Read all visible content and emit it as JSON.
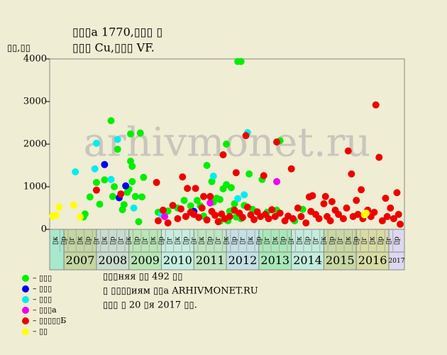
{
  "chart_data": {
    "type": "scatter",
    "title": "▯▯▯а 1770,▯▯▯ ▯",
    "subtitle": "▯▯▯ Cu,▯▯▯ VF.",
    "y_label": "▯▯,▯▯",
    "watermark": "arhivmonet.ru",
    "annotations": [
      "▯▯▯няя ▯▯ 492 ▯▯",
      "▯ ▯▯▯▯иям ▯▯а ARHIVMONET.RU",
      "▯▯▯ ▯ 20 ▯я 2017 ▯▯."
    ],
    "xlim": [
      2006.56,
      2017.48
    ],
    "ylim": [
      0,
      4000
    ],
    "yticks": [
      0,
      1000,
      2000,
      3000,
      4000
    ],
    "xticks": [
      2007,
      2008,
      2009,
      2010,
      2011,
      2012,
      2013,
      2014,
      2015,
      2016,
      2017
    ],
    "year_colors": [
      "#c4d6a2",
      "#c9dccf",
      "#b9e6b5",
      "#c6eee0",
      "#bfe6c0",
      "#c4e0e4",
      "#a8e8b8",
      "#c2ecdc",
      "#c8d8a4",
      "#d8dca4",
      "#ddd8ee"
    ],
    "first_cell_color": "#a8e8cc",
    "quarter_labels": [
      "▯к",
      "▯р",
      "▯г",
      "▯к",
      "▯р",
      "▯г",
      "▯к",
      "▯р",
      "▯г",
      "▯к",
      "▯р",
      "▯г",
      "▯к",
      "▯р",
      "▯г",
      "▯к",
      "▯р",
      "▯г",
      "▯к",
      "▯р",
      "▯г",
      "▯к",
      "▯р",
      "▯г",
      "▯к",
      "▯р",
      "▯г",
      "▯к",
      "▯р",
      "▯г",
      "▯к",
      "▯р",
      "▯г",
      "▯к",
      "▯р",
      "▯г",
      "▯к",
      "▯р",
      "▯г",
      "▯к",
      "▯р",
      "▯г",
      "▯р"
    ],
    "series": [
      {
        "name": "– ▯▯▯",
        "color": "#00ee00",
        "x": [
          2007.6,
          2007.65,
          2007.8,
          2008.0,
          2008.1,
          2008.25,
          2008.45,
          2008.5,
          2008.55,
          2008.65,
          2008.8,
          2008.85,
          2008.95,
          2009.0,
          2009.05,
          2009.05,
          2009.1,
          2009.1,
          2009.2,
          2009.3,
          2009.35,
          2009.4,
          2009.45,
          2009.9,
          2010.2,
          2010.5,
          2010.7,
          2010.9,
          2011.1,
          2011.2,
          2011.3,
          2011.4,
          2011.55,
          2011.6,
          2011.7,
          2011.8,
          2011.9,
          2012.0,
          2012.0,
          2012.15,
          2012.1,
          2012.2,
          2012.25,
          2012.35,
          2012.45,
          2012.55,
          2012.7,
          2012.8,
          2013.1,
          2013.25,
          2013.55,
          2013.65,
          2014.1,
          2014.35,
          2012.3,
          2012.45,
          2011.8,
          2012.05
        ],
        "values": [
          290,
          360,
          760,
          1100,
          590,
          1160,
          2550,
          770,
          1000,
          1880,
          460,
          580,
          870,
          940,
          2240,
          1600,
          1480,
          1120,
          770,
          180,
          2260,
          760,
          1220,
          400,
          430,
          500,
          680,
          550,
          680,
          550,
          310,
          1500,
          1120,
          640,
          730,
          700,
          950,
          2000,
          1050,
          980,
          420,
          450,
          600,
          3940,
          3940,
          560,
          1300,
          470,
          1170,
          400,
          450,
          2080,
          200,
          470,
          290,
          250,
          190,
          200
        ]
      },
      {
        "name": "– ▯▯▯",
        "color": "#0000ee",
        "x": [
          2008.25,
          2008.7,
          2008.9,
          2011.0
        ],
        "values": [
          1520,
          740,
          1020,
          420
        ]
      },
      {
        "name": "– ▯▯▯",
        "color": "#00eeee",
        "x": [
          2007.35,
          2007.95,
          2008.0,
          2008.45,
          2008.65,
          2009.15,
          2010.0,
          2011.6,
          2012.35,
          2012.65,
          2012.55
        ],
        "values": [
          1350,
          1420,
          2020,
          1170,
          2110,
          500,
          350,
          1250,
          720,
          2270,
          810
        ]
      },
      {
        "name": "– ▯▯▯а",
        "color": "#ee00ee",
        "x": [
          2010.1,
          2011.5,
          2013.55
        ],
        "values": [
          300,
          620,
          1120
        ]
      },
      {
        "name": "– ▯▯▯▯▯Б",
        "color": "#ee0000",
        "x": [
          2008.0,
          2008.75,
          2009.85,
          2010.65,
          2010.8,
          2011.05,
          2011.3,
          2011.5,
          2011.9,
          2012.3,
          2012.6,
          2013.15,
          2013.55,
          2014.0,
          2014.55,
          2014.65,
          2015.05,
          2015.25,
          2015.75,
          2015.85,
          2016.0,
          2016.15,
          2016.6,
          2016.7,
          2017.25,
          2016.9,
          2009.9,
          2010.05,
          2010.2,
          2010.35,
          2010.5,
          2010.6,
          2010.75,
          2010.9,
          2011.0,
          2011.15,
          2011.25,
          2011.4,
          2011.55,
          2011.65,
          2011.75,
          2011.85,
          2011.95,
          2012.1,
          2012.25,
          2012.4,
          2012.5,
          2012.65,
          2012.75,
          2012.85,
          2012.95,
          2013.05,
          2013.2,
          2013.3,
          2013.4,
          2013.5,
          2013.65,
          2013.8,
          2013.9,
          2014.05,
          2014.2,
          2014.3,
          2014.45,
          2014.6,
          2014.75,
          2014.85,
          2015.0,
          2015.1,
          2015.2,
          2015.35,
          2015.45,
          2015.6,
          2015.7,
          2015.9,
          2016.05,
          2016.2,
          2016.35,
          2016.45,
          2016.55,
          2016.8,
          2016.95,
          2017.05,
          2017.15,
          2017.3,
          2017.35
        ],
        "values": [
          920,
          830,
          1100,
          1230,
          960,
          960,
          770,
          770,
          1750,
          1330,
          2200,
          1260,
          2050,
          1420,
          760,
          790,
          770,
          650,
          1840,
          1300,
          680,
          930,
          2920,
          1690,
          860,
          730,
          200,
          450,
          150,
          560,
          250,
          480,
          300,
          400,
          350,
          280,
          500,
          220,
          420,
          330,
          180,
          360,
          250,
          300,
          450,
          380,
          280,
          520,
          340,
          230,
          410,
          300,
          350,
          250,
          460,
          300,
          380,
          200,
          310,
          250,
          500,
          300,
          150,
          420,
          350,
          250,
          600,
          300,
          200,
          450,
          350,
          250,
          500,
          300,
          350,
          250,
          450,
          300,
          400,
          200,
          300,
          500,
          250,
          350,
          120
        ]
      },
      {
        "name": "– ▯▯",
        "color": "#ffff00",
        "x": [
          2006.65,
          2006.75,
          2006.85,
          2007.3,
          2007.5,
          2016.3,
          2016.25
        ],
        "values": [
          310,
          330,
          520,
          570,
          290,
          380,
          340
        ]
      }
    ]
  }
}
